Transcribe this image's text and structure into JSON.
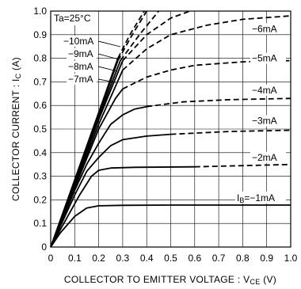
{
  "chart_data": {
    "type": "line",
    "title": "",
    "condition": "Ta=25°C",
    "xlabel": "COLLECTOR TO EMITTER VOLTAGE : V",
    "xlabel_sub": "CE",
    "xlabel_unit": " (V)",
    "ylabel": "COLLECTOR CURRENT : I",
    "ylabel_sub": "C",
    "ylabel_unit": " (A)",
    "xlim": [
      0,
      1.0
    ],
    "ylim": [
      0,
      1.0
    ],
    "x_ticks": [
      "0",
      "0.1",
      "0.2",
      "0.3",
      "0.4",
      "0.5",
      "0.6",
      "0.7",
      "0.8",
      "0.9",
      "1.0"
    ],
    "y_ticks": [
      "0",
      "0.1",
      "0.2",
      "0.3",
      "0.4",
      "0.5",
      "0.6",
      "0.7",
      "0.8",
      "0.9",
      "1.0"
    ],
    "grid": true,
    "legend": "inline labels",
    "series": [
      {
        "name": "IB=−1mA",
        "label_prefix": "I",
        "label_sub": "B",
        "label_suffix": "=−1mA",
        "solid": [
          [
            0,
            0
          ],
          [
            0.04,
            0.06
          ],
          [
            0.1,
            0.13
          ],
          [
            0.15,
            0.165
          ],
          [
            0.2,
            0.175
          ],
          [
            0.3,
            0.177
          ],
          [
            0.5,
            0.178
          ],
          [
            1.0,
            0.178
          ]
        ],
        "dashed": []
      },
      {
        "name": "−2mA",
        "solid": [
          [
            0,
            0
          ],
          [
            0.06,
            0.11
          ],
          [
            0.12,
            0.22
          ],
          [
            0.17,
            0.3
          ],
          [
            0.2,
            0.325
          ],
          [
            0.25,
            0.335
          ],
          [
            0.35,
            0.338
          ],
          [
            0.6,
            0.34
          ]
        ],
        "dashed": [
          [
            0.6,
            0.34
          ],
          [
            0.8,
            0.345
          ],
          [
            1.0,
            0.35
          ]
        ]
      },
      {
        "name": "−3mA",
        "solid": [
          [
            0,
            0
          ],
          [
            0.05,
            0.11
          ],
          [
            0.1,
            0.22
          ],
          [
            0.15,
            0.32
          ],
          [
            0.2,
            0.38
          ],
          [
            0.25,
            0.43
          ],
          [
            0.3,
            0.455
          ],
          [
            0.4,
            0.47
          ],
          [
            0.5,
            0.478
          ]
        ],
        "dashed": [
          [
            0.5,
            0.478
          ],
          [
            0.75,
            0.49
          ],
          [
            1.0,
            0.495
          ]
        ]
      },
      {
        "name": "−4mA",
        "solid": [
          [
            0,
            0
          ],
          [
            0.05,
            0.12
          ],
          [
            0.1,
            0.24
          ],
          [
            0.15,
            0.35
          ],
          [
            0.2,
            0.44
          ],
          [
            0.25,
            0.52
          ],
          [
            0.3,
            0.56
          ],
          [
            0.35,
            0.585
          ],
          [
            0.4,
            0.595
          ]
        ],
        "dashed": [
          [
            0.4,
            0.595
          ],
          [
            0.55,
            0.615
          ],
          [
            0.75,
            0.625
          ],
          [
            1.0,
            0.63
          ]
        ]
      },
      {
        "name": "−5mA",
        "solid": [
          [
            0,
            0
          ],
          [
            0.1,
            0.25
          ],
          [
            0.2,
            0.5
          ],
          [
            0.27,
            0.63
          ],
          [
            0.3,
            0.67
          ]
        ],
        "dashed": [
          [
            0.3,
            0.67
          ],
          [
            0.4,
            0.72
          ],
          [
            0.5,
            0.75
          ],
          [
            0.6,
            0.77
          ],
          [
            0.8,
            0.785
          ],
          [
            1.0,
            0.79
          ]
        ]
      },
      {
        "name": "−6mA",
        "solid": [
          [
            0,
            0
          ],
          [
            0.1,
            0.26
          ],
          [
            0.2,
            0.52
          ],
          [
            0.3,
            0.75
          ]
        ],
        "dashed": [
          [
            0.3,
            0.75
          ],
          [
            0.4,
            0.84
          ],
          [
            0.5,
            0.9
          ],
          [
            0.65,
            0.94
          ],
          [
            0.8,
            0.965
          ],
          [
            1.0,
            0.98
          ]
        ]
      },
      {
        "name": "−7mA",
        "solid": [
          [
            0,
            0
          ],
          [
            0.1,
            0.27
          ],
          [
            0.2,
            0.54
          ],
          [
            0.3,
            0.79
          ]
        ],
        "dashed": [
          [
            0.3,
            0.79
          ],
          [
            0.4,
            0.9
          ],
          [
            0.5,
            0.97
          ],
          [
            0.58,
            1.0
          ]
        ]
      },
      {
        "name": "−8mA",
        "solid": [
          [
            0,
            0
          ],
          [
            0.1,
            0.275
          ],
          [
            0.2,
            0.55
          ],
          [
            0.29,
            0.79
          ]
        ],
        "dashed": [
          [
            0.29,
            0.79
          ],
          [
            0.37,
            0.9
          ],
          [
            0.45,
            1.0
          ]
        ]
      },
      {
        "name": "−9mA",
        "solid": [
          [
            0,
            0
          ],
          [
            0.1,
            0.28
          ],
          [
            0.2,
            0.56
          ],
          [
            0.28,
            0.79
          ]
        ],
        "dashed": [
          [
            0.28,
            0.79
          ],
          [
            0.34,
            0.9
          ],
          [
            0.4,
            1.0
          ]
        ]
      },
      {
        "name": "−10mA",
        "solid": [
          [
            0,
            0
          ],
          [
            0.1,
            0.285
          ],
          [
            0.2,
            0.57
          ],
          [
            0.28,
            0.8
          ]
        ],
        "dashed": [
          [
            0.28,
            0.8
          ],
          [
            0.33,
            0.9
          ],
          [
            0.39,
            1.0
          ]
        ]
      }
    ]
  }
}
